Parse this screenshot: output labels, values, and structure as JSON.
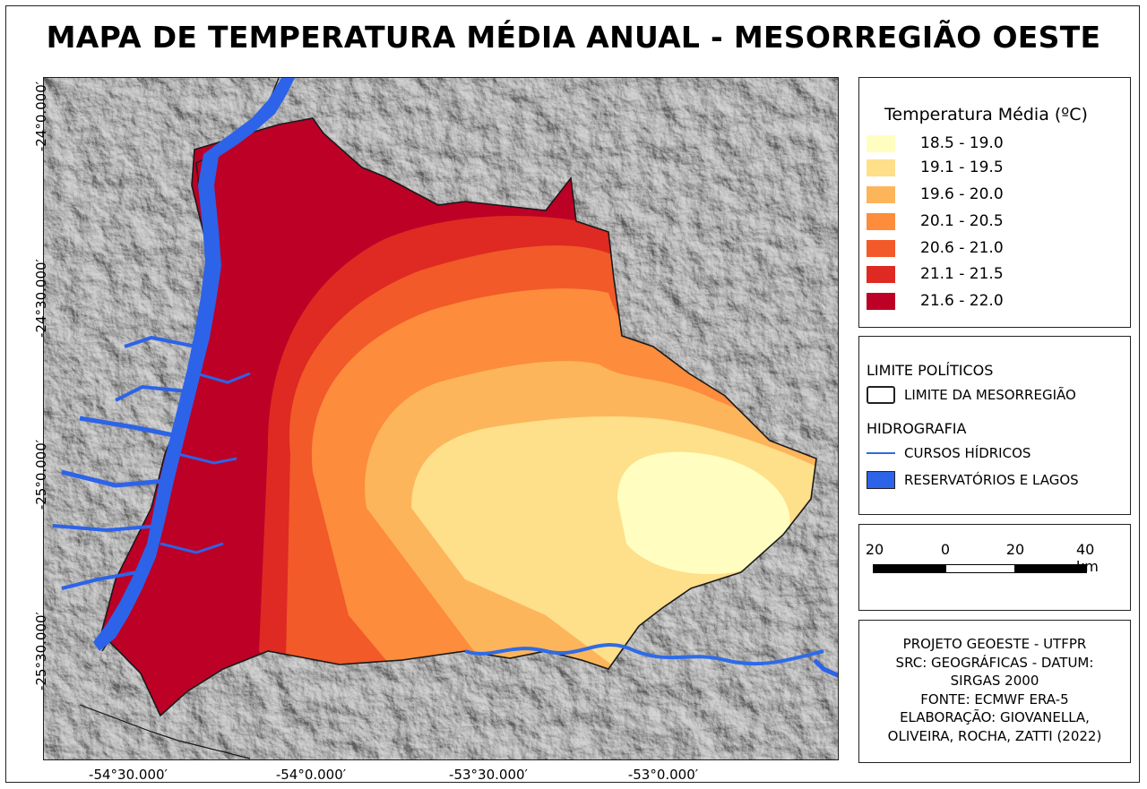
{
  "title": "MAPA DE TEMPERATURA MÉDIA ANUAL - MESORREGIÃO OESTE",
  "map": {
    "x_ticks": [
      "-54°30.000′",
      "-54°0.000′",
      "-53°30.000′",
      "-53°0.000′"
    ],
    "y_ticks": [
      "-24°0.000′",
      "-24°30.000′",
      "-25°0.000′",
      "-25°30.000′"
    ]
  },
  "legend": {
    "title": "Temperatura Média (ºC)",
    "classes": [
      {
        "label": "18.5 - 19.0",
        "color": "#fffec0"
      },
      {
        "label": "19.1 - 19.5",
        "color": "#fedf8a"
      },
      {
        "label": "19.6 - 20.0",
        "color": "#fdb55b"
      },
      {
        "label": "20.1 - 20.5",
        "color": "#fd8c3c"
      },
      {
        "label": "20.6 - 21.0",
        "color": "#f25a29"
      },
      {
        "label": "21.1 - 21.5",
        "color": "#de2a22"
      },
      {
        "label": "21.6 - 22.0",
        "color": "#bd0026"
      }
    ]
  },
  "symbols": {
    "political_header": "LIMITE POLÍTICOS",
    "boundary_label": "LIMITE DA MESORREGIÃO",
    "hydro_header": "HIDROGRAFIA",
    "rivers_label": "CURSOS HÍDRICOS",
    "lakes_label": "RESERVATÓRIOS E LAGOS",
    "river_color": "#2e6be6",
    "lake_color": "#2d63e8"
  },
  "scalebar": {
    "labels": [
      "20",
      "0",
      "20",
      "40 km"
    ]
  },
  "credits": {
    "lines": [
      "PROJETO GEOESTE - UTFPR",
      "SRC: GEOGRÁFICAS - DATUM:",
      "SIRGAS 2000",
      "FONTE: ECMWF ERA-5",
      "ELABORAÇÃO: GIOVANELLA,",
      "OLIVEIRA, ROCHA, ZATTI (2022)"
    ]
  }
}
